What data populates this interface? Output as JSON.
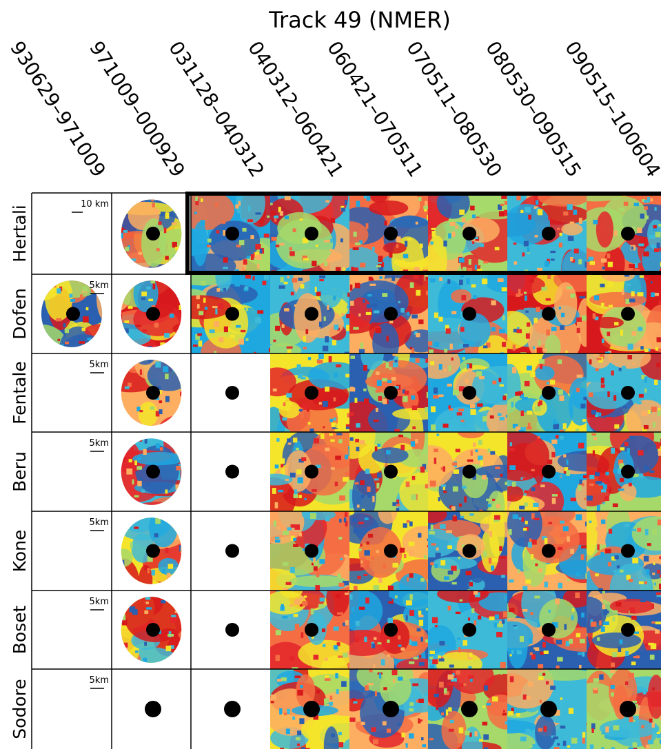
{
  "title": "Track 49 (NMER)",
  "columns": [
    "930629–971009",
    "971009–000929",
    "031128–040312",
    "040312–060421",
    "060421–070511",
    "070511–080530",
    "080530–090515",
    "090515–100604"
  ],
  "rows": [
    {
      "label": "Hertali",
      "scale": "10 km"
    },
    {
      "label": "Dofen",
      "scale": "5km"
    },
    {
      "label": "Fentale",
      "scale": "5km"
    },
    {
      "label": "Beru",
      "scale": "5km"
    },
    {
      "label": "Kone",
      "scale": "5km"
    },
    {
      "label": "Boset",
      "scale": "5km"
    },
    {
      "label": "Sodore",
      "scale": "5km"
    }
  ]
}
